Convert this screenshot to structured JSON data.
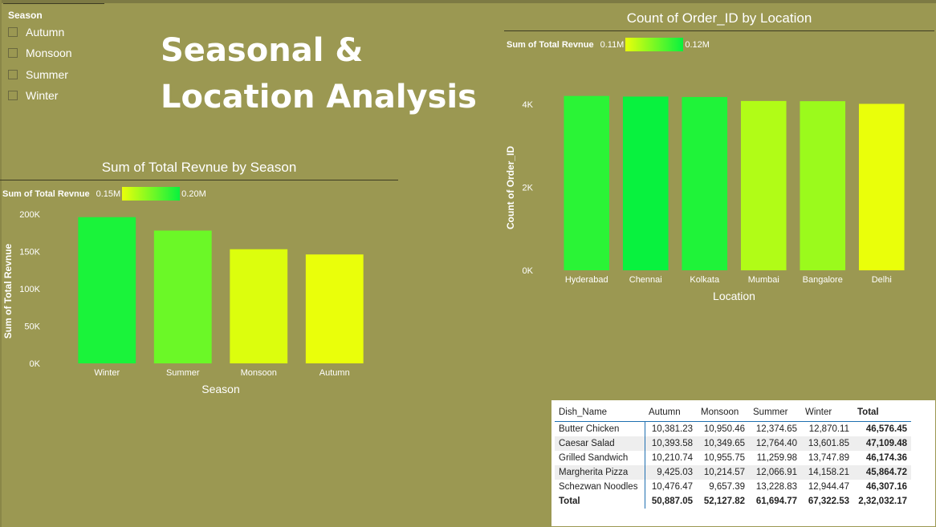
{
  "title": {
    "line1": "Seasonal &",
    "line2": "Location Analysis"
  },
  "slicer": {
    "title": "Season",
    "items": [
      "Autumn",
      "Monsoon",
      "Summer",
      "Winter"
    ]
  },
  "colors": {
    "background": "#9b9852",
    "low": "#eaff0a",
    "high": "#08f23e"
  },
  "season_chart": {
    "title": "Sum of Total Revnue by Season",
    "legend": {
      "title": "Sum of Total Revnue",
      "min": "0.15M",
      "max": "0.20M"
    }
  },
  "location_chart": {
    "title": "Count of Order_ID by Location",
    "legend": {
      "title": "Sum of Total Revnue",
      "min": "0.11M",
      "max": "0.12M"
    }
  },
  "chart_data": [
    {
      "type": "bar",
      "title": "Sum of Total Revnue by Season",
      "xlabel": "Season",
      "ylabel": "Sum of Total Revnue",
      "categories": [
        "Winter",
        "Summer",
        "Monsoon",
        "Autumn"
      ],
      "values": [
        196000,
        178000,
        153000,
        146000
      ],
      "color_values": [
        0.196,
        0.178,
        0.153,
        0.146
      ],
      "color_range": [
        0.15,
        0.2
      ],
      "yticks": [
        0,
        50000,
        100000,
        150000,
        200000
      ],
      "ytick_labels": [
        "0K",
        "50K",
        "100K",
        "150K",
        "200K"
      ],
      "ylim": [
        0,
        200000
      ]
    },
    {
      "type": "bar",
      "title": "Count of Order_ID by Location",
      "xlabel": "Location",
      "ylabel": "Count of Order_ID",
      "categories": [
        "Hyderabad",
        "Chennai",
        "Kolkata",
        "Mumbai",
        "Bangalore",
        "Delhi"
      ],
      "values": [
        4200,
        4185,
        4175,
        4080,
        4075,
        4010
      ],
      "color_values": [
        0.1185,
        0.12,
        0.119,
        0.1125,
        0.1135,
        0.11
      ],
      "color_range": [
        0.11,
        0.12
      ],
      "yticks": [
        0,
        2000,
        4000
      ],
      "ytick_labels": [
        "0K",
        "2K",
        "4K"
      ],
      "ylim": [
        0,
        4000
      ]
    }
  ],
  "table": {
    "headers": [
      "Dish_Name",
      "Autumn",
      "Monsoon",
      "Summer",
      "Winter",
      "Total"
    ],
    "rows": [
      [
        "Butter Chicken",
        "10,381.23",
        "10,950.46",
        "12,374.65",
        "12,870.11",
        "46,576.45"
      ],
      [
        "Caesar Salad",
        "10,393.58",
        "10,349.65",
        "12,764.40",
        "13,601.85",
        "47,109.48"
      ],
      [
        "Grilled Sandwich",
        "10,210.74",
        "10,955.75",
        "11,259.98",
        "13,747.89",
        "46,174.36"
      ],
      [
        "Margherita Pizza",
        "9,425.03",
        "10,214.57",
        "12,066.91",
        "14,158.21",
        "45,864.72"
      ],
      [
        "Schezwan Noodles",
        "10,476.47",
        "9,657.39",
        "13,228.83",
        "12,944.47",
        "46,307.16"
      ]
    ],
    "total_row": [
      "Total",
      "50,887.05",
      "52,127.82",
      "61,694.77",
      "67,322.53",
      "2,32,032.17"
    ]
  }
}
